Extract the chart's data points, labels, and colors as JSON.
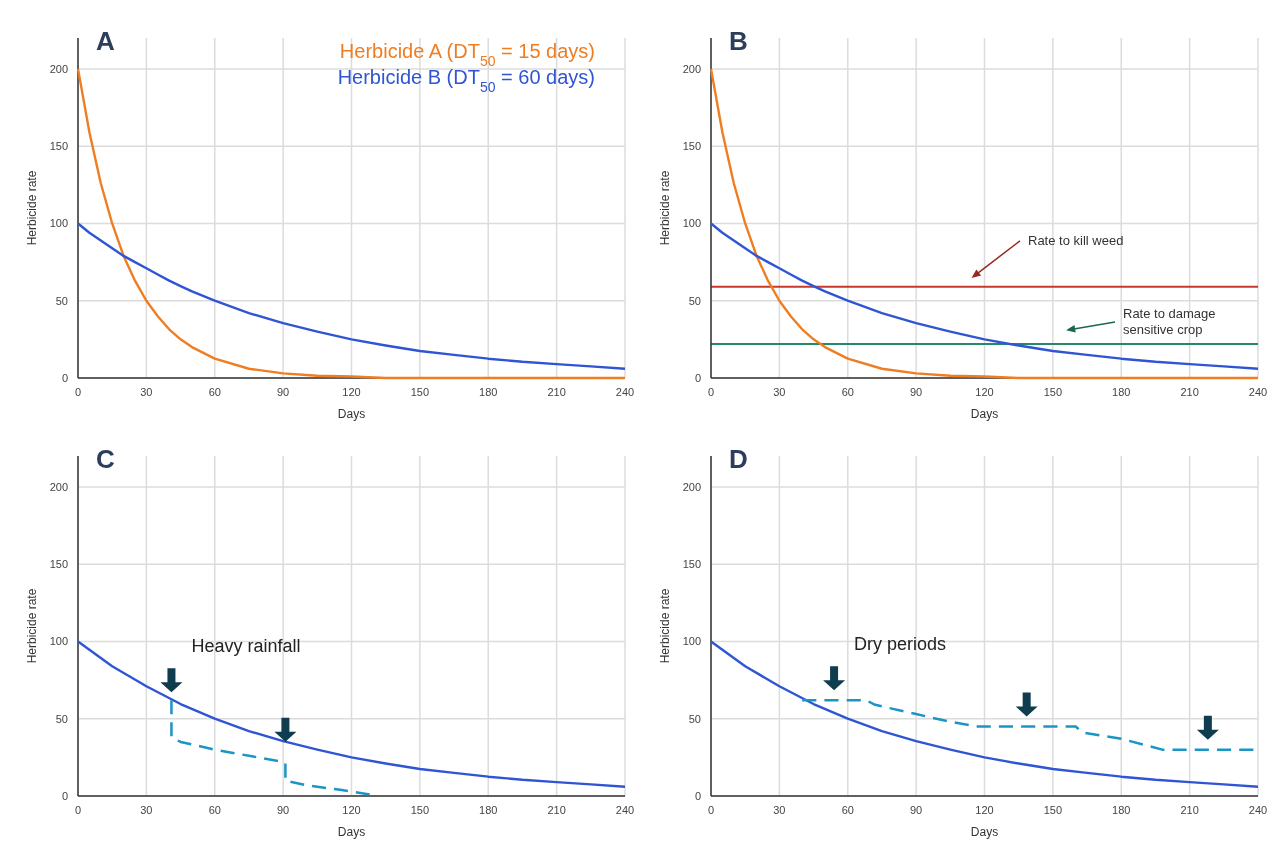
{
  "chart_data": [
    {
      "type": "line",
      "title": "A",
      "xlabel": "Days",
      "ylabel": "Herbicide rate",
      "xlim": [
        0,
        240
      ],
      "ylim": [
        0,
        220
      ],
      "xticks": [
        0,
        30,
        60,
        90,
        120,
        150,
        180,
        210,
        240
      ],
      "yticks": [
        0,
        50,
        100,
        150,
        200
      ],
      "grid": true,
      "legend": "top right",
      "x": [
        0,
        5,
        10,
        15,
        20,
        25,
        30,
        35,
        40,
        45,
        50,
        60,
        75,
        90,
        105,
        120,
        135,
        150,
        165,
        180,
        195,
        210,
        225,
        240
      ],
      "series": [
        {
          "name": "Herbicide A (DT$_{50}$ = 15 days)",
          "color": "#ef7d22",
          "line_style": "solid",
          "values": [
            200,
            159,
            126,
            100,
            79,
            63,
            50,
            40,
            31.5,
            25,
            20,
            12.5,
            6,
            3,
            1.5,
            1,
            0,
            0,
            0,
            0,
            0,
            0,
            0,
            0
          ]
        },
        {
          "name": "Herbicide B (DT$_{50}$ = 60 days)",
          "color": "#2f55d4",
          "line_style": "solid",
          "values": [
            100,
            94,
            89,
            84,
            79,
            75,
            71,
            67,
            63,
            59.5,
            56,
            50,
            42,
            35.5,
            30,
            25,
            21,
            17.5,
            15,
            12.5,
            10.5,
            9,
            7.5,
            6
          ]
        }
      ]
    },
    {
      "type": "line",
      "title": "B",
      "xlabel": "Days",
      "ylabel": "Herbicide rate",
      "xlim": [
        0,
        240
      ],
      "ylim": [
        0,
        220
      ],
      "xticks": [
        0,
        30,
        60,
        90,
        120,
        150,
        180,
        210,
        240
      ],
      "yticks": [
        0,
        50,
        100,
        150,
        200
      ],
      "grid": true,
      "x": [
        0,
        5,
        10,
        15,
        20,
        25,
        30,
        35,
        40,
        45,
        50,
        60,
        75,
        90,
        105,
        120,
        135,
        150,
        165,
        180,
        195,
        210,
        225,
        240
      ],
      "series": [
        {
          "color": "#ef7d22",
          "line_style": "solid",
          "values": [
            200,
            159,
            126,
            100,
            79,
            63,
            50,
            40,
            31.5,
            25,
            20,
            12.5,
            6,
            3,
            1.5,
            1,
            0,
            0,
            0,
            0,
            0,
            0,
            0,
            0
          ]
        },
        {
          "color": "#2f55d4",
          "line_style": "solid",
          "values": [
            100,
            94,
            89,
            84,
            79,
            75,
            71,
            67,
            63,
            59.5,
            56,
            50,
            42,
            35.5,
            30,
            25,
            21,
            17.5,
            15,
            12.5,
            10.5,
            9,
            7.5,
            6
          ]
        }
      ],
      "ref_lines": [
        {
          "axis": "y",
          "value": 59,
          "label": "Rate to kill weed",
          "color": "#c8382c"
        },
        {
          "axis": "y",
          "value": 22,
          "label": "Rate to damage sensitive crop",
          "color": "#23896a"
        }
      ]
    },
    {
      "type": "line",
      "title": "C",
      "xlabel": "Days",
      "ylabel": "Herbicide rate",
      "xlim": [
        0,
        240
      ],
      "ylim": [
        0,
        220
      ],
      "xticks": [
        0,
        30,
        60,
        90,
        120,
        150,
        180,
        210,
        240
      ],
      "yticks": [
        0,
        50,
        100,
        150,
        200
      ],
      "grid": true,
      "annotations": [
        "Heavy rainfall"
      ],
      "x": [
        0,
        15,
        30,
        45,
        60,
        75,
        90,
        105,
        120,
        135,
        150,
        165,
        180,
        195,
        210,
        225,
        240
      ],
      "series": [
        {
          "color": "#2f55d4",
          "line_style": "solid",
          "values": [
            100,
            84,
            71,
            59.5,
            50,
            42,
            35.5,
            30,
            25,
            21,
            17.5,
            15,
            12.5,
            10.5,
            9,
            7.5,
            6
          ]
        },
        {
          "color": "#1b95c6",
          "line_style": "dashed",
          "x": [
            41,
            41,
            45,
            60,
            75,
            90,
            91,
            91,
            100,
            115,
            128
          ],
          "values": [
            62,
            38,
            35,
            30,
            26,
            22,
            21,
            10,
            7,
            4,
            1
          ]
        }
      ]
    },
    {
      "type": "line",
      "title": "D",
      "xlabel": "Days",
      "ylabel": "Herbicide rate",
      "xlim": [
        0,
        240
      ],
      "ylim": [
        0,
        220
      ],
      "xticks": [
        0,
        30,
        60,
        90,
        120,
        150,
        180,
        210,
        240
      ],
      "yticks": [
        0,
        50,
        100,
        150,
        200
      ],
      "grid": true,
      "annotations": [
        "Dry periods"
      ],
      "x": [
        0,
        15,
        30,
        45,
        60,
        75,
        90,
        105,
        120,
        135,
        150,
        165,
        180,
        195,
        210,
        225,
        240
      ],
      "series": [
        {
          "color": "#2f55d4",
          "line_style": "solid",
          "values": [
            100,
            84,
            71,
            59.5,
            50,
            42,
            35.5,
            30,
            25,
            21,
            17.5,
            15,
            12.5,
            10.5,
            9,
            7.5,
            6
          ]
        },
        {
          "color": "#1b95c6",
          "line_style": "dashed",
          "x": [
            40,
            68,
            72,
            90,
            105,
            117,
            160,
            163,
            180,
            198,
            238
          ],
          "values": [
            62,
            62,
            59,
            53,
            48,
            45,
            45,
            41,
            37,
            30,
            30
          ]
        }
      ]
    }
  ]
}
